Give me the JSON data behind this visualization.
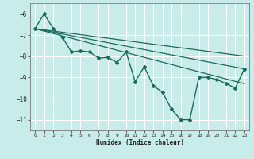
{
  "xlabel": "Humidex (Indice chaleur)",
  "ylabel": "",
  "bg_color": "#c8ece9",
  "grid_color": "#ffffff",
  "line_color": "#1a6b5a",
  "xlim": [
    -0.5,
    23.5
  ],
  "ylim": [
    -11.5,
    -5.5
  ],
  "yticks": [
    -6,
    -7,
    -8,
    -9,
    -10,
    -11
  ],
  "xticks": [
    0,
    1,
    2,
    3,
    4,
    5,
    6,
    7,
    8,
    9,
    10,
    11,
    12,
    13,
    14,
    15,
    16,
    17,
    18,
    19,
    20,
    21,
    22,
    23
  ],
  "series": [
    {
      "x": [
        0,
        1,
        2,
        3,
        4,
        5,
        6,
        7,
        8,
        9,
        10,
        11,
        12,
        13,
        14,
        15,
        16,
        17,
        18,
        19,
        20,
        21,
        22,
        23
      ],
      "y": [
        -6.7,
        -6.0,
        -6.7,
        -7.1,
        -7.8,
        -7.75,
        -7.8,
        -8.1,
        -8.05,
        -8.3,
        -7.8,
        -9.2,
        -8.5,
        -9.4,
        -9.7,
        -10.5,
        -11.0,
        -11.0,
        -9.0,
        -9.0,
        -9.1,
        -9.3,
        -9.5,
        -8.6
      ],
      "marker": "D",
      "markersize": 2.0,
      "linewidth": 1.0
    },
    {
      "x": [
        0,
        23
      ],
      "y": [
        -6.7,
        -8.6
      ],
      "marker": null,
      "linewidth": 0.9
    },
    {
      "x": [
        0,
        23
      ],
      "y": [
        -6.7,
        -9.3
      ],
      "marker": null,
      "linewidth": 0.9
    },
    {
      "x": [
        0,
        23
      ],
      "y": [
        -6.7,
        -8.0
      ],
      "marker": null,
      "linewidth": 0.9
    }
  ]
}
